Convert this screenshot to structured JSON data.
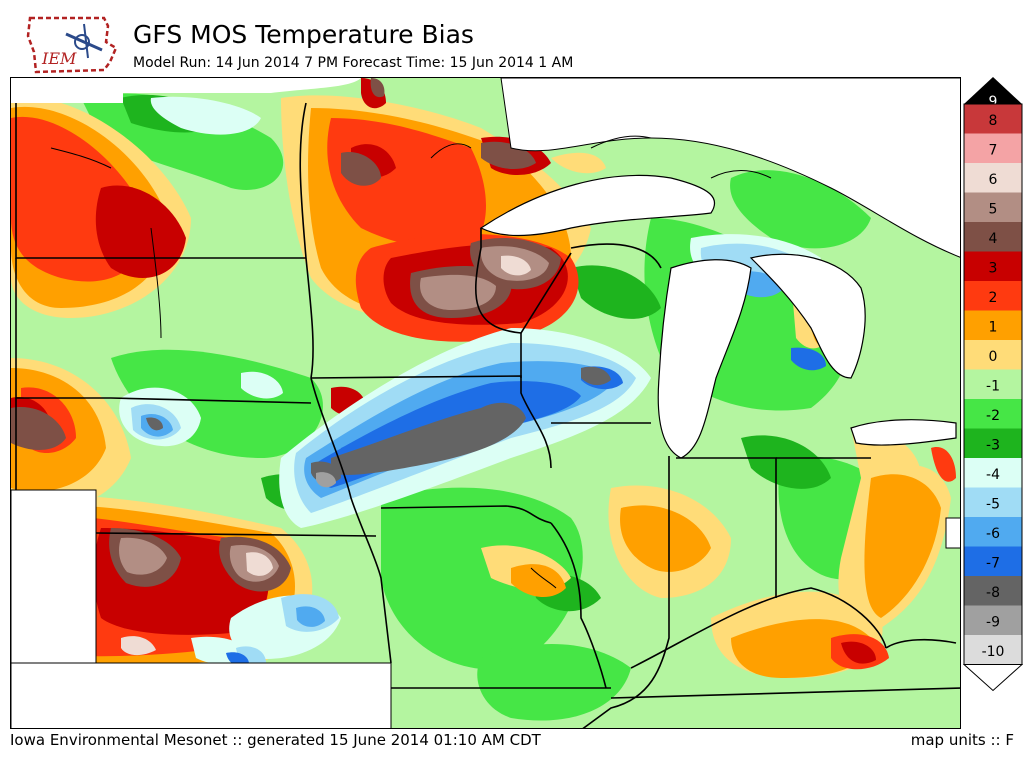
{
  "header": {
    "logo_text": "IEM",
    "title": "GFS MOS Temperature Bias",
    "subtitle": "Model Run: 14 Jun 2014 7 PM Forecast Time: 15 Jun 2014 1 AM"
  },
  "legend": {
    "levels": [
      {
        "label": "9",
        "color": "#000000"
      },
      {
        "label": "8",
        "color": "#c8383a"
      },
      {
        "label": "7",
        "color": "#f4a3a5"
      },
      {
        "label": "6",
        "color": "#efdcd4"
      },
      {
        "label": "5",
        "color": "#b28e84"
      },
      {
        "label": "4",
        "color": "#7e5046"
      },
      {
        "label": "3",
        "color": "#c80000"
      },
      {
        "label": "2",
        "color": "#ff3a10"
      },
      {
        "label": "1",
        "color": "#ffa000"
      },
      {
        "label": "0",
        "color": "#ffdc78"
      },
      {
        "label": "-1",
        "color": "#b4f5a0"
      },
      {
        "label": "-2",
        "color": "#46e646"
      },
      {
        "label": "-3",
        "color": "#1eb41e"
      },
      {
        "label": "-4",
        "color": "#dcfff5"
      },
      {
        "label": "-5",
        "color": "#a0dcf5"
      },
      {
        "label": "-6",
        "color": "#50aaf0"
      },
      {
        "label": "-7",
        "color": "#1e6ee6"
      },
      {
        "label": "-8",
        "color": "#646464"
      },
      {
        "label": "-9",
        "color": "#a0a0a0"
      },
      {
        "label": "-10",
        "color": "#dcdcdc"
      }
    ]
  },
  "footer": {
    "credit": "Iowa Environmental Mesonet :: generated 15 June 2014 01:10 AM CDT",
    "units": "map units :: F"
  }
}
